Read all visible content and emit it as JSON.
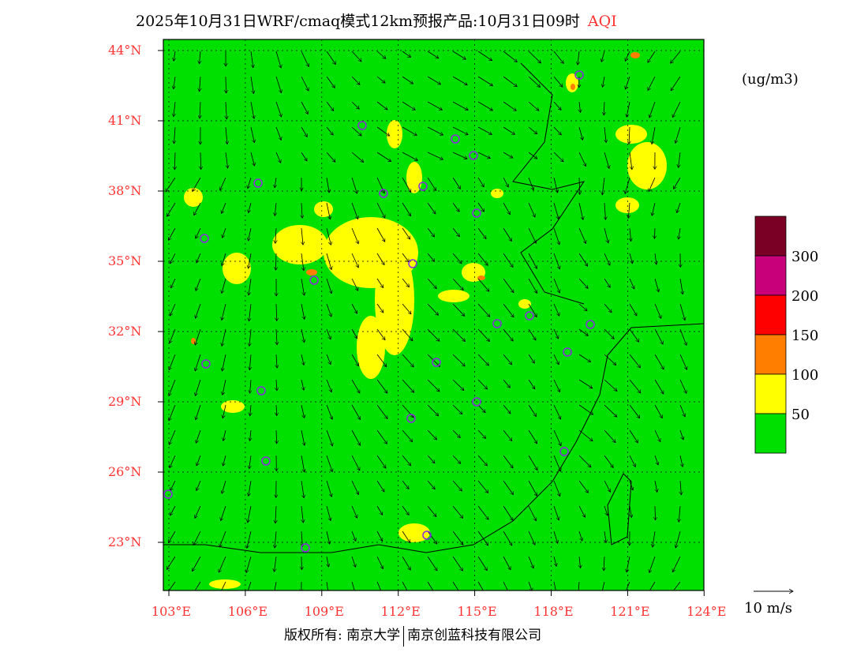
{
  "title": {
    "main": "2025年10月31日WRF/cmaq模式12km预报产品:10月31日09时",
    "variable": "AQI"
  },
  "units": "(ug/m3)",
  "lat_labels": [
    "44°N",
    "41°N",
    "38°N",
    "35°N",
    "32°N",
    "29°N",
    "26°N",
    "23°N"
  ],
  "lon_labels": [
    "103°E",
    "106°E",
    "109°E",
    "112°E",
    "115°E",
    "118°E",
    "121°E",
    "124°E"
  ],
  "colorbar": {
    "labels": [
      "300",
      "200",
      "150",
      "100",
      "50"
    ],
    "colors": [
      "#7a0025",
      "#c8007a",
      "#ff0000",
      "#ff7e00",
      "#ffff00",
      "#00e000"
    ]
  },
  "wind_reference": "10 m/s",
  "copyright": {
    "left": "版权所有: 南京大学",
    "right": "南京创蓝科技有限公司"
  }
}
